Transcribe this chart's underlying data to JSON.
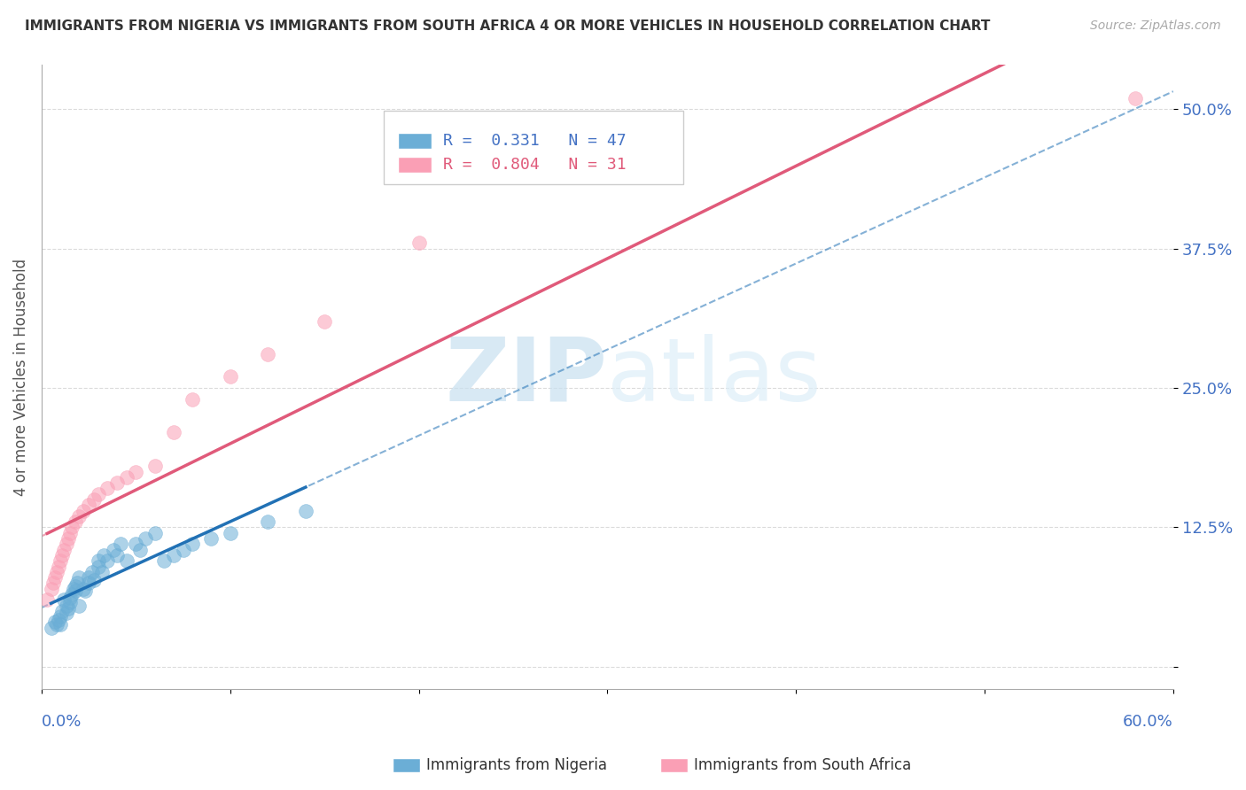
{
  "title": "IMMIGRANTS FROM NIGERIA VS IMMIGRANTS FROM SOUTH AFRICA 4 OR MORE VEHICLES IN HOUSEHOLD CORRELATION CHART",
  "source": "Source: ZipAtlas.com",
  "ylabel": "4 or more Vehicles in Household",
  "yticks": [
    0.0,
    0.125,
    0.25,
    0.375,
    0.5
  ],
  "ytick_labels": [
    "",
    "12.5%",
    "25.0%",
    "37.5%",
    "50.0%"
  ],
  "xlim": [
    0.0,
    0.6
  ],
  "ylim": [
    -0.02,
    0.54
  ],
  "nigeria_R": 0.331,
  "nigeria_N": 47,
  "sa_R": 0.804,
  "sa_N": 31,
  "nigeria_color": "#6baed6",
  "sa_color": "#fa9fb5",
  "nigeria_line_color": "#2171b5",
  "sa_line_color": "#e05a7a",
  "background_color": "#ffffff",
  "watermark_zip": "ZIP",
  "watermark_atlas": "atlas",
  "nigeria_scatter_x": [
    0.005,
    0.007,
    0.008,
    0.009,
    0.01,
    0.01,
    0.011,
    0.012,
    0.013,
    0.013,
    0.014,
    0.015,
    0.015,
    0.016,
    0.017,
    0.018,
    0.018,
    0.019,
    0.02,
    0.02,
    0.022,
    0.023,
    0.025,
    0.025,
    0.027,
    0.028,
    0.03,
    0.03,
    0.032,
    0.033,
    0.035,
    0.038,
    0.04,
    0.042,
    0.045,
    0.05,
    0.052,
    0.055,
    0.06,
    0.065,
    0.07,
    0.075,
    0.08,
    0.09,
    0.1,
    0.12,
    0.14
  ],
  "nigeria_scatter_y": [
    0.035,
    0.04,
    0.038,
    0.042,
    0.045,
    0.038,
    0.05,
    0.06,
    0.055,
    0.048,
    0.052,
    0.058,
    0.062,
    0.065,
    0.07,
    0.068,
    0.072,
    0.075,
    0.08,
    0.055,
    0.07,
    0.068,
    0.075,
    0.08,
    0.085,
    0.078,
    0.09,
    0.095,
    0.085,
    0.1,
    0.095,
    0.105,
    0.1,
    0.11,
    0.095,
    0.11,
    0.105,
    0.115,
    0.12,
    0.095,
    0.1,
    0.105,
    0.11,
    0.115,
    0.12,
    0.13,
    0.14
  ],
  "sa_scatter_x": [
    0.003,
    0.005,
    0.006,
    0.007,
    0.008,
    0.009,
    0.01,
    0.011,
    0.012,
    0.013,
    0.014,
    0.015,
    0.016,
    0.018,
    0.02,
    0.022,
    0.025,
    0.028,
    0.03,
    0.035,
    0.04,
    0.045,
    0.05,
    0.06,
    0.07,
    0.08,
    0.1,
    0.12,
    0.15,
    0.2,
    0.58
  ],
  "sa_scatter_y": [
    0.06,
    0.07,
    0.075,
    0.08,
    0.085,
    0.09,
    0.095,
    0.1,
    0.105,
    0.11,
    0.115,
    0.12,
    0.125,
    0.13,
    0.135,
    0.14,
    0.145,
    0.15,
    0.155,
    0.16,
    0.165,
    0.17,
    0.175,
    0.18,
    0.21,
    0.24,
    0.26,
    0.28,
    0.31,
    0.38,
    0.51
  ]
}
